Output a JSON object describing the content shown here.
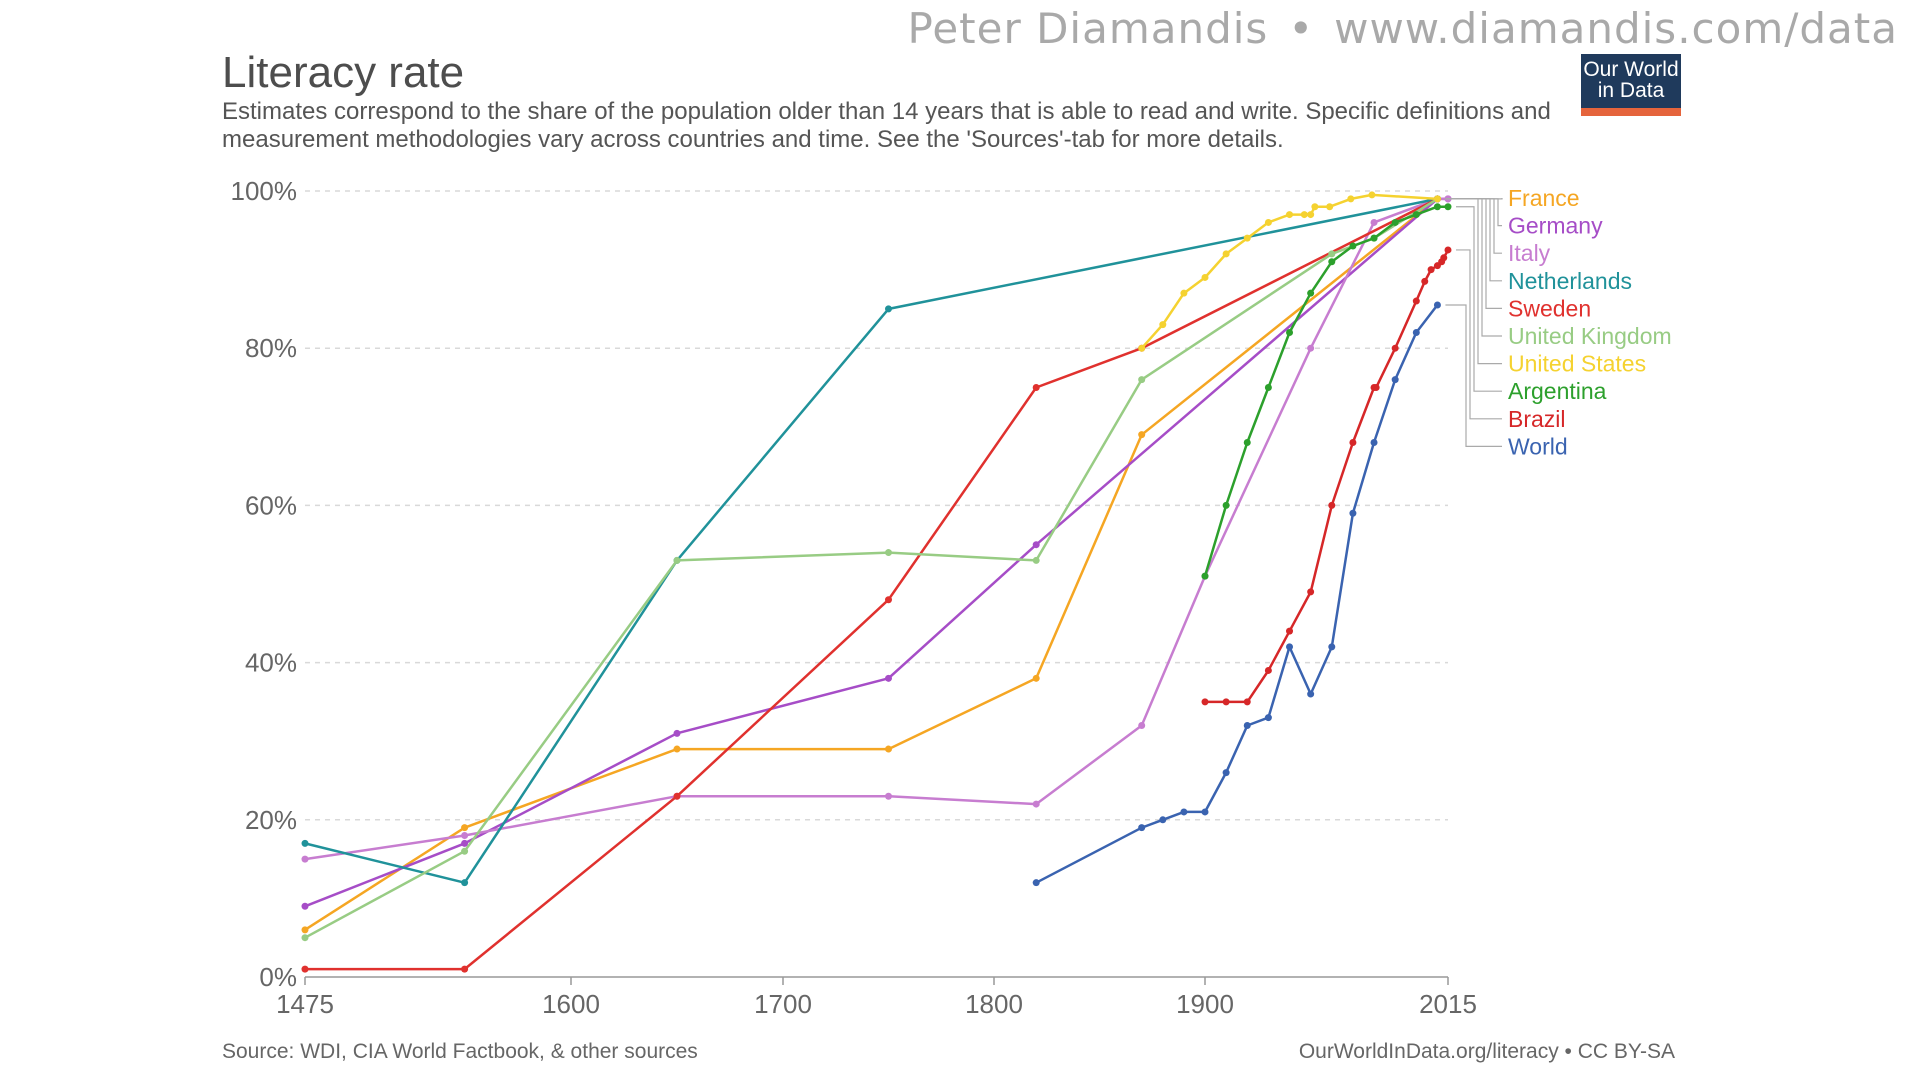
{
  "credit": {
    "author": "Peter Diamandis",
    "separator": "•",
    "site": "www.diamandis.com/data"
  },
  "header": {
    "title": "Literacy rate",
    "subtitle": "Estimates correspond to the share of the population older than 14 years that is able to read and write. Specific definitions and measurement methodologies vary across countries and time. See the 'Sources'-tab for more details."
  },
  "logo": {
    "line1": "Our World",
    "line2": "in Data"
  },
  "footer": {
    "source": "Source: WDI, CIA World Factbook, & other sources",
    "license": "OurWorldInData.org/literacy • CC BY-SA"
  },
  "chart_data": {
    "type": "line",
    "title": "Literacy rate",
    "xlabel": "",
    "ylabel": "",
    "xlim": [
      1475,
      2015
    ],
    "ylim": [
      0,
      100
    ],
    "x_ticks": [
      1475,
      1600,
      1700,
      1800,
      1900,
      2015
    ],
    "y_ticks": [
      0,
      20,
      40,
      60,
      80,
      100
    ],
    "y_tick_labels": [
      "0%",
      "20%",
      "40%",
      "60%",
      "80%",
      "100%"
    ],
    "grid": "horizontal dashed",
    "legend_position": "right",
    "series": [
      {
        "name": "France",
        "color": "#f5a623",
        "points": [
          [
            1475,
            6
          ],
          [
            1550,
            19
          ],
          [
            1650,
            29
          ],
          [
            1750,
            29
          ],
          [
            1820,
            38
          ],
          [
            1870,
            69
          ],
          [
            2010,
            99
          ]
        ]
      },
      {
        "name": "Germany",
        "color": "#a64dc7",
        "points": [
          [
            1475,
            9
          ],
          [
            1550,
            17
          ],
          [
            1650,
            31
          ],
          [
            1750,
            38
          ],
          [
            1820,
            55
          ],
          [
            2010,
            99
          ],
          [
            2015,
            99
          ]
        ]
      },
      {
        "name": "Italy",
        "color": "#c77dd0",
        "points": [
          [
            1475,
            15
          ],
          [
            1550,
            18
          ],
          [
            1650,
            23
          ],
          [
            1750,
            23
          ],
          [
            1820,
            22
          ],
          [
            1870,
            32
          ],
          [
            1900,
            51
          ],
          [
            1950,
            80
          ],
          [
            1980,
            96
          ],
          [
            2010,
            99
          ],
          [
            2015,
            99
          ]
        ]
      },
      {
        "name": "Netherlands",
        "color": "#20929a",
        "points": [
          [
            1475,
            17
          ],
          [
            1550,
            12
          ],
          [
            1650,
            53
          ],
          [
            1750,
            85
          ],
          [
            2010,
            99
          ]
        ]
      },
      {
        "name": "Sweden",
        "color": "#e0312e",
        "points": [
          [
            1475,
            1
          ],
          [
            1550,
            1
          ],
          [
            1650,
            23
          ],
          [
            1750,
            48
          ],
          [
            1820,
            75
          ],
          [
            1870,
            80
          ],
          [
            2010,
            99
          ]
        ]
      },
      {
        "name": "United Kingdom",
        "color": "#98cc84",
        "points": [
          [
            1475,
            5
          ],
          [
            1550,
            16
          ],
          [
            1650,
            53
          ],
          [
            1750,
            54
          ],
          [
            1820,
            53
          ],
          [
            1870,
            76
          ],
          [
            1960,
            92
          ],
          [
            1980,
            94
          ],
          [
            2010,
            99
          ]
        ]
      },
      {
        "name": "United States",
        "color": "#f5d230",
        "points": [
          [
            1870,
            80
          ],
          [
            1880,
            83
          ],
          [
            1890,
            87
          ],
          [
            1900,
            89
          ],
          [
            1910,
            92
          ],
          [
            1920,
            94
          ],
          [
            1930,
            96
          ],
          [
            1940,
            97
          ],
          [
            1947,
            97
          ],
          [
            1950,
            97
          ],
          [
            1952,
            98
          ],
          [
            1959,
            98
          ],
          [
            1969,
            99
          ],
          [
            1979,
            99.5
          ],
          [
            2010,
            99
          ]
        ]
      },
      {
        "name": "Argentina",
        "color": "#2ca02c",
        "points": [
          [
            1900,
            51
          ],
          [
            1910,
            60
          ],
          [
            1920,
            68
          ],
          [
            1930,
            75
          ],
          [
            1940,
            82
          ],
          [
            1950,
            87
          ],
          [
            1960,
            91
          ],
          [
            1970,
            93
          ],
          [
            1980,
            94
          ],
          [
            1990,
            96
          ],
          [
            2000,
            97
          ],
          [
            2010,
            98
          ],
          [
            2015,
            98
          ]
        ]
      },
      {
        "name": "Brazil",
        "color": "#d62728",
        "points": [
          [
            1900,
            35
          ],
          [
            1910,
            35
          ],
          [
            1920,
            35
          ],
          [
            1930,
            39
          ],
          [
            1940,
            44
          ],
          [
            1950,
            49
          ],
          [
            1960,
            60
          ],
          [
            1970,
            68
          ],
          [
            1980,
            75
          ],
          [
            1981,
            75
          ],
          [
            1990,
            80
          ],
          [
            2000,
            86
          ],
          [
            2004,
            88.5
          ],
          [
            2007,
            90
          ],
          [
            2010,
            90.5
          ],
          [
            2012,
            91
          ],
          [
            2013,
            91.5
          ],
          [
            2015,
            92.5
          ]
        ]
      },
      {
        "name": "World",
        "color": "#3a63b0",
        "points": [
          [
            1820,
            12
          ],
          [
            1870,
            19
          ],
          [
            1880,
            20
          ],
          [
            1890,
            21
          ],
          [
            1900,
            21
          ],
          [
            1910,
            26
          ],
          [
            1920,
            32
          ],
          [
            1930,
            33
          ],
          [
            1940,
            42
          ],
          [
            1950,
            36
          ],
          [
            1960,
            42
          ],
          [
            1970,
            59
          ],
          [
            1980,
            68
          ],
          [
            1990,
            76
          ],
          [
            2000,
            82
          ],
          [
            2010,
            85.5
          ]
        ]
      }
    ]
  }
}
